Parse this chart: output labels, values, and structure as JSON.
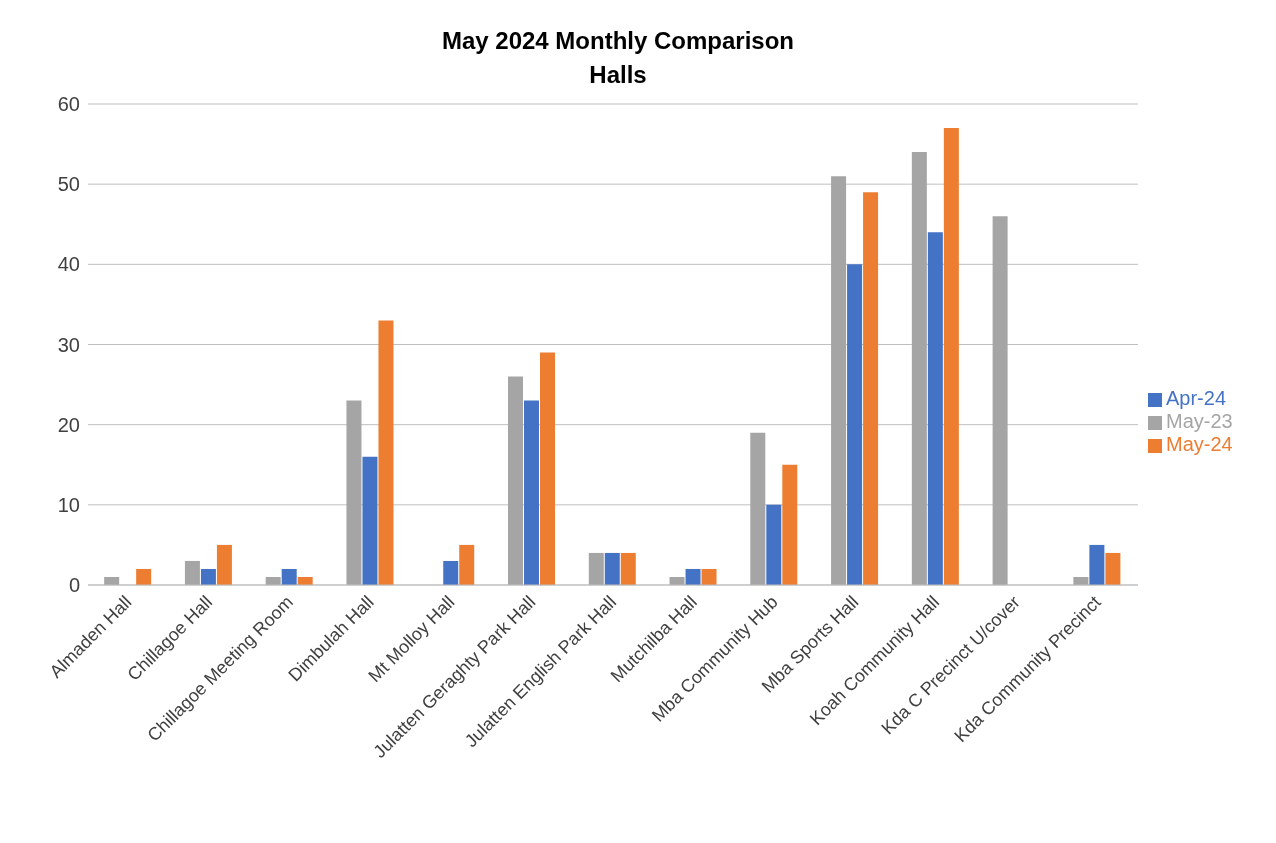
{
  "chart_data": {
    "type": "bar",
    "title": "May 2024 Monthly Comparison",
    "subtitle": "Halls",
    "categories": [
      "Almaden Hall",
      "Chillagoe Hall",
      "Chillagoe Meeting Room",
      "Dimbulah Hall",
      "Mt Molloy Hall",
      "Julatten Geraghty Park Hall",
      "Julatten English Park Hall",
      "Mutchilba Hall",
      "Mba Community Hub",
      "Mba Sports Hall",
      "Koah Community Hall",
      "Kda C Precinct U/cover",
      "Kda Community Precinct"
    ],
    "series": [
      {
        "name": "May-23",
        "color": "#a5a5a5",
        "values": [
          1,
          3,
          1,
          23,
          0,
          26,
          4,
          1,
          19,
          51,
          54,
          46,
          1
        ]
      },
      {
        "name": "Apr-24",
        "color": "#4472c4",
        "values": [
          0,
          2,
          2,
          16,
          3,
          23,
          4,
          2,
          10,
          40,
          44,
          0,
          5
        ]
      },
      {
        "name": "May-24",
        "color": "#ed7d31",
        "values": [
          2,
          5,
          1,
          33,
          5,
          29,
          4,
          2,
          15,
          49,
          57,
          0,
          4
        ]
      }
    ],
    "ylim": [
      0,
      60
    ],
    "yticks": [
      0,
      10,
      20,
      30,
      40,
      50,
      60
    ],
    "grid": "y",
    "legend": "right"
  }
}
